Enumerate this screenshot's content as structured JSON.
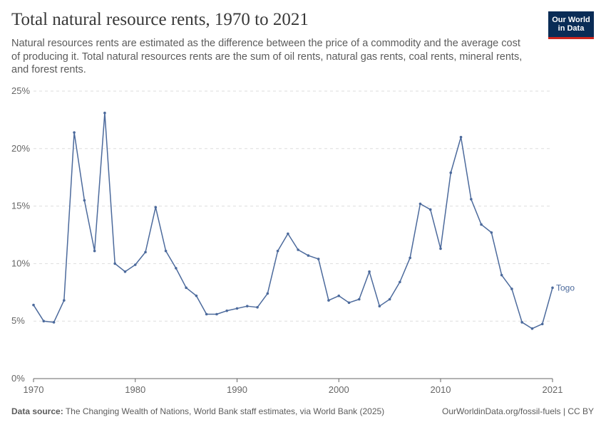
{
  "header": {
    "title": "Total natural resource rents, 1970 to 2021",
    "subtitle": "Natural resources rents are estimated as the difference between the price of a commodity and the average cost of producing it. Total natural resources rents are the sum of oil rents, natural gas rents, coal rents, mineral rents, and forest rents."
  },
  "logo": {
    "line1": "Our World",
    "line2": "in Data"
  },
  "footer": {
    "source_label": "Data source:",
    "source_text": "The Changing Wealth of Nations, World Bank staff estimates, via World Bank (2025)",
    "link": "OurWorldinData.org/fossil-fuels | CC BY"
  },
  "colors": {
    "line": "#4c6a9c",
    "grid": "#dddddd",
    "axis": "#666666",
    "text": "#666666"
  },
  "chart_data": {
    "type": "line",
    "title": "Total natural resource rents, 1970 to 2021",
    "xlabel": "",
    "ylabel": "",
    "xlim": [
      1970,
      2021
    ],
    "ylim": [
      0,
      25
    ],
    "x_ticks": [
      1970,
      1980,
      1990,
      2000,
      2010,
      2021
    ],
    "x_tick_labels": [
      "1970",
      "1980",
      "1990",
      "2000",
      "2010",
      "2021"
    ],
    "y_ticks": [
      0,
      5,
      10,
      15,
      20,
      25
    ],
    "y_tick_labels": [
      "0%",
      "5%",
      "10%",
      "15%",
      "20%",
      "25%"
    ],
    "grid": true,
    "series": [
      {
        "name": "Togo",
        "x": [
          1970,
          1971,
          1972,
          1973,
          1974,
          1975,
          1976,
          1977,
          1978,
          1979,
          1980,
          1981,
          1982,
          1983,
          1984,
          1985,
          1986,
          1987,
          1988,
          1989,
          1990,
          1991,
          1992,
          1993,
          1994,
          1995,
          1996,
          1997,
          1998,
          1999,
          2000,
          2001,
          2002,
          2003,
          2004,
          2005,
          2006,
          2007,
          2008,
          2009,
          2010,
          2011,
          2012,
          2013,
          2014,
          2015,
          2016,
          2017,
          2018,
          2019,
          2020,
          2021
        ],
        "values": [
          6.4,
          5.0,
          4.9,
          6.8,
          21.4,
          15.5,
          11.1,
          23.1,
          10.0,
          9.3,
          9.9,
          11.0,
          14.9,
          11.1,
          9.6,
          7.9,
          7.2,
          5.6,
          5.6,
          5.9,
          6.1,
          6.3,
          6.2,
          7.4,
          11.1,
          12.6,
          11.2,
          10.7,
          10.4,
          6.8,
          7.2,
          6.6,
          6.9,
          9.3,
          6.3,
          6.9,
          8.4,
          10.5,
          15.2,
          14.7,
          11.3,
          17.9,
          21.0,
          15.6,
          13.4,
          12.7,
          9.0,
          7.8,
          4.9,
          4.35,
          4.75,
          7.9
        ]
      }
    ]
  }
}
